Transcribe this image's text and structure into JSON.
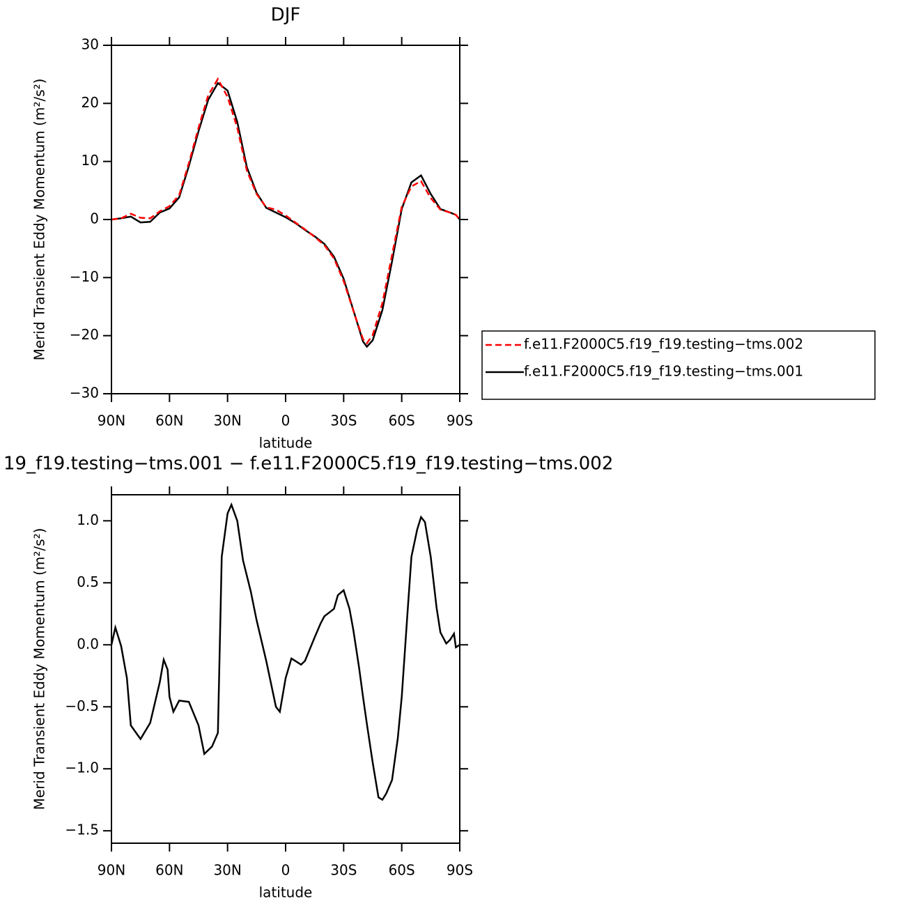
{
  "chart_data": [
    {
      "type": "line",
      "title": "DJF",
      "xlabel": "latitude",
      "ylabel": "Merid Transient Eddy Momentum (m²/s²)",
      "x": [
        90,
        85,
        80,
        75,
        70,
        65,
        60,
        55,
        50,
        45,
        40,
        35,
        30,
        25,
        20,
        15,
        10,
        5,
        0,
        -5,
        -10,
        -15,
        -20,
        -25,
        -30,
        -35,
        -40,
        -42,
        -45,
        -50,
        -55,
        -60,
        -65,
        -70,
        -75,
        -80,
        -85,
        -88,
        -90
      ],
      "series": [
        {
          "name": "f.e11.F2000C5.f19_f19.testing−tms.002",
          "color": "#ff0000",
          "dash": true,
          "values": [
            0,
            0.2,
            1.0,
            0.3,
            0.2,
            1.4,
            2.3,
            4.2,
            9.7,
            15.8,
            21.4,
            24.2,
            21.1,
            15.8,
            8.4,
            4.4,
            2.1,
            1.7,
            0.7,
            -0.5,
            -1.7,
            -3.0,
            -4.4,
            -6.7,
            -10.6,
            -15.7,
            -20.6,
            -21.3,
            -19.9,
            -14.4,
            -6.1,
            2.2,
            5.7,
            6.6,
            3.7,
            1.7,
            1.2,
            0.8,
            0
          ]
        },
        {
          "name": "f.e11.F2000C5.f19_f19.testing−tms.001",
          "color": "#000000",
          "dash": false,
          "values": [
            0,
            0.2,
            0.5,
            -0.5,
            -0.4,
            1.2,
            1.9,
            3.8,
            9.2,
            15.2,
            20.6,
            23.5,
            22.2,
            16.8,
            9,
            4.6,
            2.0,
            1.2,
            0.4,
            -0.6,
            -1.8,
            -2.9,
            -4.2,
            -6.4,
            -10.2,
            -15.6,
            -21,
            -21.9,
            -20.8,
            -15.6,
            -7.2,
            1.8,
            6.4,
            7.6,
            4.4,
            1.8,
            1.2,
            0.8,
            0
          ]
        }
      ],
      "xlim": [
        90,
        -90
      ],
      "xticks": [
        {
          "value": 90,
          "label": "90N"
        },
        {
          "value": 60,
          "label": "60N"
        },
        {
          "value": 30,
          "label": "30N"
        },
        0,
        {
          "value": -30,
          "label": "30S"
        },
        {
          "value": -60,
          "label": "60S"
        },
        {
          "value": -90,
          "label": "90S"
        }
      ],
      "ylim": [
        -30,
        30
      ],
      "yticks": [
        {
          "value": -30,
          "label": "−30"
        },
        {
          "value": -20,
          "label": "−20"
        },
        {
          "value": -10,
          "label": "−10"
        },
        0,
        10,
        20,
        30
      ],
      "legend": "right"
    },
    {
      "type": "line",
      "title": "19_f19.testing−tms.001 − f.e11.F2000C5.f19_f19.testing−tms.002",
      "xlabel": "latitude",
      "ylabel": "Merid Transient Eddy Momentum (m²/s²)",
      "x": [
        90,
        88,
        85,
        82,
        80,
        75,
        70,
        65,
        63,
        61,
        60,
        58,
        55,
        50,
        45,
        42,
        38,
        35,
        33,
        30,
        28,
        25,
        22,
        18,
        15,
        10,
        5,
        3,
        0,
        -3,
        -5,
        -8,
        -10,
        -15,
        -18,
        -20,
        -25,
        -27,
        -30,
        -33,
        -35,
        -38,
        -40,
        -42,
        -45,
        -48,
        -50,
        -52,
        -55,
        -58,
        -60,
        -63,
        -65,
        -68,
        -70,
        -72,
        -75,
        -78,
        -80,
        -83,
        -85,
        -87,
        -88,
        -90
      ],
      "values": [
        0,
        0.14,
        -0.01,
        -0.27,
        -0.65,
        -0.76,
        -0.63,
        -0.3,
        -0.12,
        -0.2,
        -0.42,
        -0.54,
        -0.45,
        -0.46,
        -0.65,
        -0.88,
        -0.82,
        -0.71,
        0.71,
        1.06,
        1.13,
        1.0,
        0.68,
        0.43,
        0.2,
        -0.13,
        -0.5,
        -0.54,
        -0.27,
        -0.11,
        -0.13,
        -0.16,
        -0.13,
        0.06,
        0.17,
        0.23,
        0.29,
        0.4,
        0.44,
        0.29,
        0.12,
        -0.19,
        -0.42,
        -0.64,
        -0.95,
        -1.23,
        -1.25,
        -1.2,
        -1.09,
        -0.75,
        -0.42,
        0.26,
        0.71,
        0.93,
        1.03,
        0.99,
        0.71,
        0.3,
        0.1,
        0.01,
        0.04,
        0.09,
        -0.02,
        0
      ],
      "color": "#000000",
      "xlim": [
        90,
        -90
      ],
      "xticks": [
        {
          "value": 90,
          "label": "90N"
        },
        {
          "value": 60,
          "label": "60N"
        },
        {
          "value": 30,
          "label": "30N"
        },
        0,
        {
          "value": -30,
          "label": "30S"
        },
        {
          "value": -60,
          "label": "60S"
        },
        {
          "value": -90,
          "label": "90S"
        }
      ],
      "ylim": [
        -1.6,
        1.21
      ],
      "yticks": [
        {
          "value": -1.5,
          "label": "−1.5"
        },
        {
          "value": -1,
          "label": "−1.0"
        },
        {
          "value": -0.5,
          "label": "−0.5"
        },
        {
          "value": 0,
          "label": "0.0"
        },
        {
          "value": 0.5,
          "label": "0.5"
        },
        {
          "value": 1,
          "label": "1.0"
        }
      ]
    }
  ]
}
